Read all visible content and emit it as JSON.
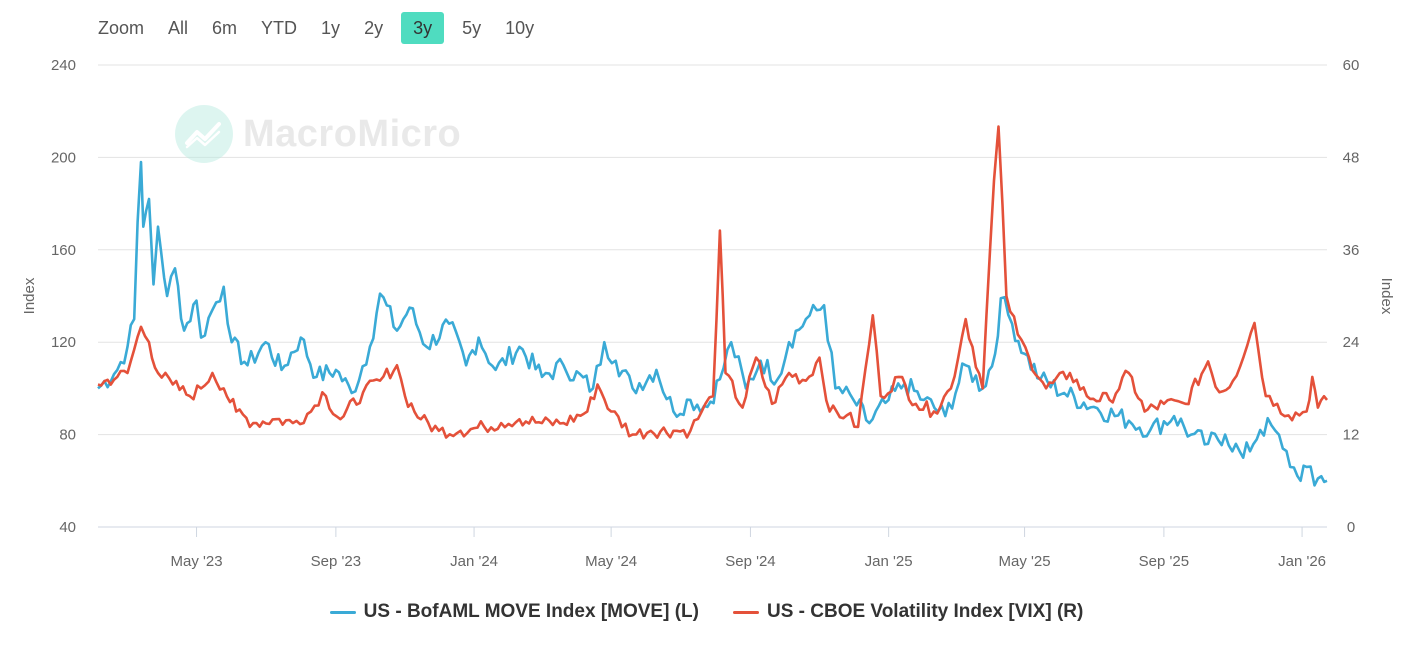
{
  "zoom": {
    "label": "Zoom",
    "options": [
      "All",
      "6m",
      "YTD",
      "1y",
      "2y",
      "3y",
      "5y",
      "10y"
    ],
    "active": "3y",
    "active_color": "#4fdcc0"
  },
  "watermark": {
    "text": "MacroMicro"
  },
  "chart_data": {
    "type": "line",
    "x_range": [
      "2023-02-03",
      "2026-01-23"
    ],
    "x_tick_labels": [
      "May '23",
      "Sep '23",
      "Jan '24",
      "May '24",
      "Sep '24",
      "Jan '25",
      "May '25",
      "Sep '25",
      "Jan '26"
    ],
    "x_tick_dates": [
      "2023-05-01",
      "2023-09-01",
      "2024-01-01",
      "2024-05-01",
      "2024-09-01",
      "2025-01-01",
      "2025-05-01",
      "2025-09-01",
      "2026-01-01"
    ],
    "y_left": {
      "title": "Index",
      "min": 40,
      "max": 240,
      "ticks": [
        40,
        80,
        120,
        160,
        200,
        240
      ]
    },
    "y_right": {
      "title": "Index",
      "min": 0,
      "max": 60,
      "ticks": [
        0,
        12,
        24,
        36,
        48,
        60
      ]
    },
    "grid": true,
    "legend_position": "bottom-center",
    "series": [
      {
        "name": "US - BofAML MOVE Index [MOVE] (L)",
        "axis": "left",
        "color": "#3aaad6",
        "points": [
          [
            "2023-02-03",
            100
          ],
          [
            "2023-02-20",
            108
          ],
          [
            "2023-03-01",
            118
          ],
          [
            "2023-03-07",
            130
          ],
          [
            "2023-03-10",
            172
          ],
          [
            "2023-03-13",
            198
          ],
          [
            "2023-03-15",
            170
          ],
          [
            "2023-03-20",
            182
          ],
          [
            "2023-03-24",
            145
          ],
          [
            "2023-03-28",
            170
          ],
          [
            "2023-04-05",
            140
          ],
          [
            "2023-04-12",
            152
          ],
          [
            "2023-04-20",
            125
          ],
          [
            "2023-05-01",
            138
          ],
          [
            "2023-05-05",
            122
          ],
          [
            "2023-05-15",
            134
          ],
          [
            "2023-05-25",
            144
          ],
          [
            "2023-06-01",
            120
          ],
          [
            "2023-06-15",
            110
          ],
          [
            "2023-07-01",
            120
          ],
          [
            "2023-07-15",
            108
          ],
          [
            "2023-08-01",
            122
          ],
          [
            "2023-08-15",
            105
          ],
          [
            "2023-09-01",
            108
          ],
          [
            "2023-09-15",
            98
          ],
          [
            "2023-10-01",
            118
          ],
          [
            "2023-10-10",
            141
          ],
          [
            "2023-10-25",
            125
          ],
          [
            "2023-11-05",
            135
          ],
          [
            "2023-11-20",
            118
          ],
          [
            "2023-12-10",
            128
          ],
          [
            "2023-12-25",
            110
          ],
          [
            "2024-01-05",
            122
          ],
          [
            "2024-01-20",
            108
          ],
          [
            "2024-02-10",
            118
          ],
          [
            "2024-03-01",
            105
          ],
          [
            "2024-03-20",
            110
          ],
          [
            "2024-04-15",
            100
          ],
          [
            "2024-04-25",
            120
          ],
          [
            "2024-05-05",
            112
          ],
          [
            "2024-05-20",
            100
          ],
          [
            "2024-06-10",
            108
          ],
          [
            "2024-06-25",
            90
          ],
          [
            "2024-07-10",
            95
          ],
          [
            "2024-07-25",
            92
          ],
          [
            "2024-08-05",
            104
          ],
          [
            "2024-08-15",
            120
          ],
          [
            "2024-08-28",
            100
          ],
          [
            "2024-09-10",
            112
          ],
          [
            "2024-09-25",
            104
          ],
          [
            "2024-10-05",
            120
          ],
          [
            "2024-10-20",
            130
          ],
          [
            "2024-11-05",
            136
          ],
          [
            "2024-11-15",
            100
          ],
          [
            "2024-12-01",
            95
          ],
          [
            "2024-12-15",
            85
          ],
          [
            "2025-01-01",
            95
          ],
          [
            "2025-01-15",
            102
          ],
          [
            "2025-02-01",
            95
          ],
          [
            "2025-02-20",
            88
          ],
          [
            "2025-03-10",
            110
          ],
          [
            "2025-03-25",
            100
          ],
          [
            "2025-04-05",
            115
          ],
          [
            "2025-04-10",
            139
          ],
          [
            "2025-04-20",
            128
          ],
          [
            "2025-05-01",
            115
          ],
          [
            "2025-05-15",
            104
          ],
          [
            "2025-06-05",
            98
          ],
          [
            "2025-07-01",
            92
          ],
          [
            "2025-08-01",
            86
          ],
          [
            "2025-08-20",
            82
          ],
          [
            "2025-09-10",
            88
          ],
          [
            "2025-09-25",
            80
          ],
          [
            "2025-10-10",
            76
          ],
          [
            "2025-10-25",
            80
          ],
          [
            "2025-11-10",
            70
          ],
          [
            "2025-11-25",
            82
          ],
          [
            "2025-12-05",
            84
          ],
          [
            "2025-12-15",
            74
          ],
          [
            "2025-12-28",
            62
          ],
          [
            "2026-01-05",
            66
          ],
          [
            "2026-01-12",
            58
          ],
          [
            "2026-01-18",
            62
          ],
          [
            "2026-01-23",
            60
          ]
        ]
      },
      {
        "name": "US - CBOE Volatility Index [VIX] (R)",
        "axis": "right",
        "color": "#e4513a",
        "points": [
          [
            "2023-02-03",
            18.5
          ],
          [
            "2023-02-20",
            19.5
          ],
          [
            "2023-03-01",
            20
          ],
          [
            "2023-03-13",
            26
          ],
          [
            "2023-03-20",
            24
          ],
          [
            "2023-03-28",
            20
          ],
          [
            "2023-04-10",
            18.5
          ],
          [
            "2023-04-25",
            17
          ],
          [
            "2023-05-05",
            18
          ],
          [
            "2023-05-15",
            20
          ],
          [
            "2023-05-25",
            18
          ],
          [
            "2023-06-05",
            15
          ],
          [
            "2023-06-20",
            13.5
          ],
          [
            "2023-07-10",
            14
          ],
          [
            "2023-07-25",
            13.5
          ],
          [
            "2023-08-10",
            15
          ],
          [
            "2023-08-20",
            17.5
          ],
          [
            "2023-09-05",
            14
          ],
          [
            "2023-09-25",
            17.5
          ],
          [
            "2023-10-10",
            19
          ],
          [
            "2023-10-25",
            21
          ],
          [
            "2023-11-01",
            17
          ],
          [
            "2023-11-15",
            14
          ],
          [
            "2023-12-01",
            12.5
          ],
          [
            "2023-12-20",
            12.5
          ],
          [
            "2024-01-10",
            13
          ],
          [
            "2024-01-25",
            13.5
          ],
          [
            "2024-02-10",
            14
          ],
          [
            "2024-03-01",
            13.5
          ],
          [
            "2024-03-20",
            13.5
          ],
          [
            "2024-04-10",
            15
          ],
          [
            "2024-04-19",
            18.5
          ],
          [
            "2024-05-01",
            15
          ],
          [
            "2024-05-20",
            12
          ],
          [
            "2024-06-05",
            12.5
          ],
          [
            "2024-06-25",
            12.5
          ],
          [
            "2024-07-10",
            12.5
          ],
          [
            "2024-07-20",
            15
          ],
          [
            "2024-07-30",
            17
          ],
          [
            "2024-08-05",
            38.5
          ],
          [
            "2024-08-10",
            20
          ],
          [
            "2024-08-25",
            15.5
          ],
          [
            "2024-09-06",
            22
          ],
          [
            "2024-09-20",
            16
          ],
          [
            "2024-10-05",
            20
          ],
          [
            "2024-10-20",
            19
          ],
          [
            "2024-11-01",
            22
          ],
          [
            "2024-11-10",
            15
          ],
          [
            "2024-11-25",
            14.5
          ],
          [
            "2024-12-05",
            13
          ],
          [
            "2024-12-18",
            27.5
          ],
          [
            "2024-12-25",
            17
          ],
          [
            "2025-01-10",
            19.5
          ],
          [
            "2025-01-25",
            16
          ],
          [
            "2025-02-10",
            15
          ],
          [
            "2025-02-25",
            18
          ],
          [
            "2025-03-10",
            27
          ],
          [
            "2025-03-25",
            18
          ],
          [
            "2025-04-04",
            45
          ],
          [
            "2025-04-08",
            52
          ],
          [
            "2025-04-15",
            30
          ],
          [
            "2025-04-25",
            25
          ],
          [
            "2025-05-05",
            22
          ],
          [
            "2025-05-20",
            18
          ],
          [
            "2025-06-10",
            20
          ],
          [
            "2025-06-25",
            17
          ],
          [
            "2025-07-15",
            16.5
          ],
          [
            "2025-08-01",
            20
          ],
          [
            "2025-08-15",
            15
          ],
          [
            "2025-09-01",
            16
          ],
          [
            "2025-09-20",
            16
          ],
          [
            "2025-10-10",
            21.5
          ],
          [
            "2025-10-20",
            17.5
          ],
          [
            "2025-11-01",
            19
          ],
          [
            "2025-11-20",
            26.5
          ],
          [
            "2025-11-30",
            17
          ],
          [
            "2025-12-10",
            16
          ],
          [
            "2025-12-20",
            14.5
          ],
          [
            "2026-01-05",
            15
          ],
          [
            "2026-01-10",
            19.5
          ],
          [
            "2026-01-15",
            15.5
          ],
          [
            "2026-01-23",
            16.5
          ]
        ]
      }
    ]
  }
}
